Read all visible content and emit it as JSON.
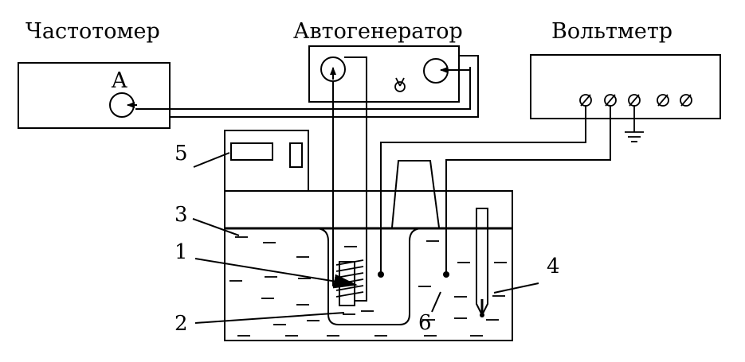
{
  "devices": {
    "frequency_meter": {
      "title": "Частотомер",
      "input_label": "A"
    },
    "autogenerator": {
      "title": "Автогенератор"
    },
    "voltmeter": {
      "title": "Вольтметр"
    }
  },
  "labels": {
    "one": "1",
    "two": "2",
    "three": "3",
    "four": "4",
    "five": "5",
    "six": "6"
  }
}
